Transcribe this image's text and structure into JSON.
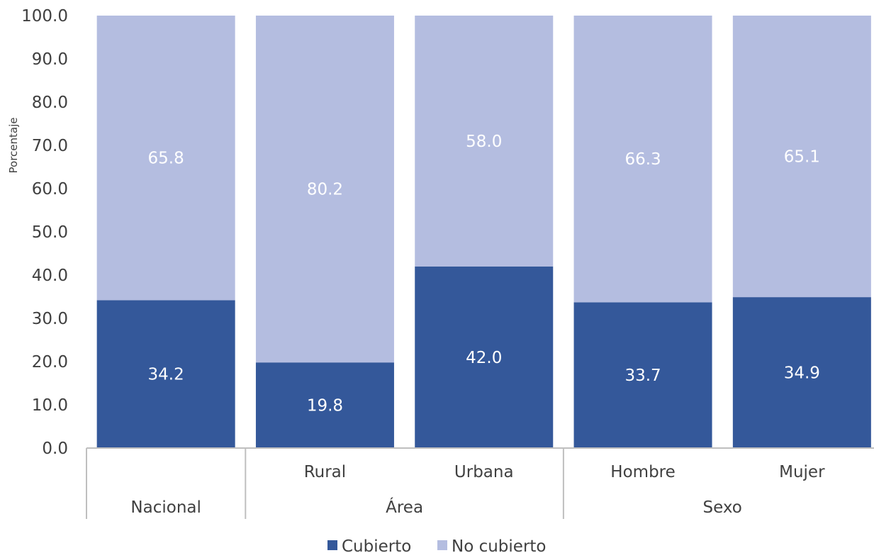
{
  "chart_data": {
    "type": "bar",
    "stacked": true,
    "title": "",
    "xlabel": "",
    "ylabel": "Porcentaje",
    "ylim": [
      0,
      100
    ],
    "yticks": [
      "0.0",
      "10.0",
      "20.0",
      "30.0",
      "40.0",
      "50.0",
      "60.0",
      "70.0",
      "80.0",
      "90.0",
      "100.0"
    ],
    "categories": [
      "",
      "Rural",
      "Urbana",
      "Hombre",
      "Mujer"
    ],
    "groups": [
      {
        "label": "Nacional",
        "members": [
          0
        ]
      },
      {
        "label": "Área",
        "members": [
          1,
          2
        ]
      },
      {
        "label": "Sexo",
        "members": [
          3,
          4
        ]
      }
    ],
    "series": [
      {
        "name": "Cubierto",
        "values": [
          34.2,
          19.8,
          42.0,
          33.7,
          34.9
        ],
        "color": "#34589a"
      },
      {
        "name": "No cubierto",
        "values": [
          65.8,
          80.2,
          58.0,
          66.3,
          65.1
        ],
        "color": "#b4bde0"
      }
    ],
    "data_labels": true,
    "grid": false,
    "legend_position": "bottom"
  }
}
